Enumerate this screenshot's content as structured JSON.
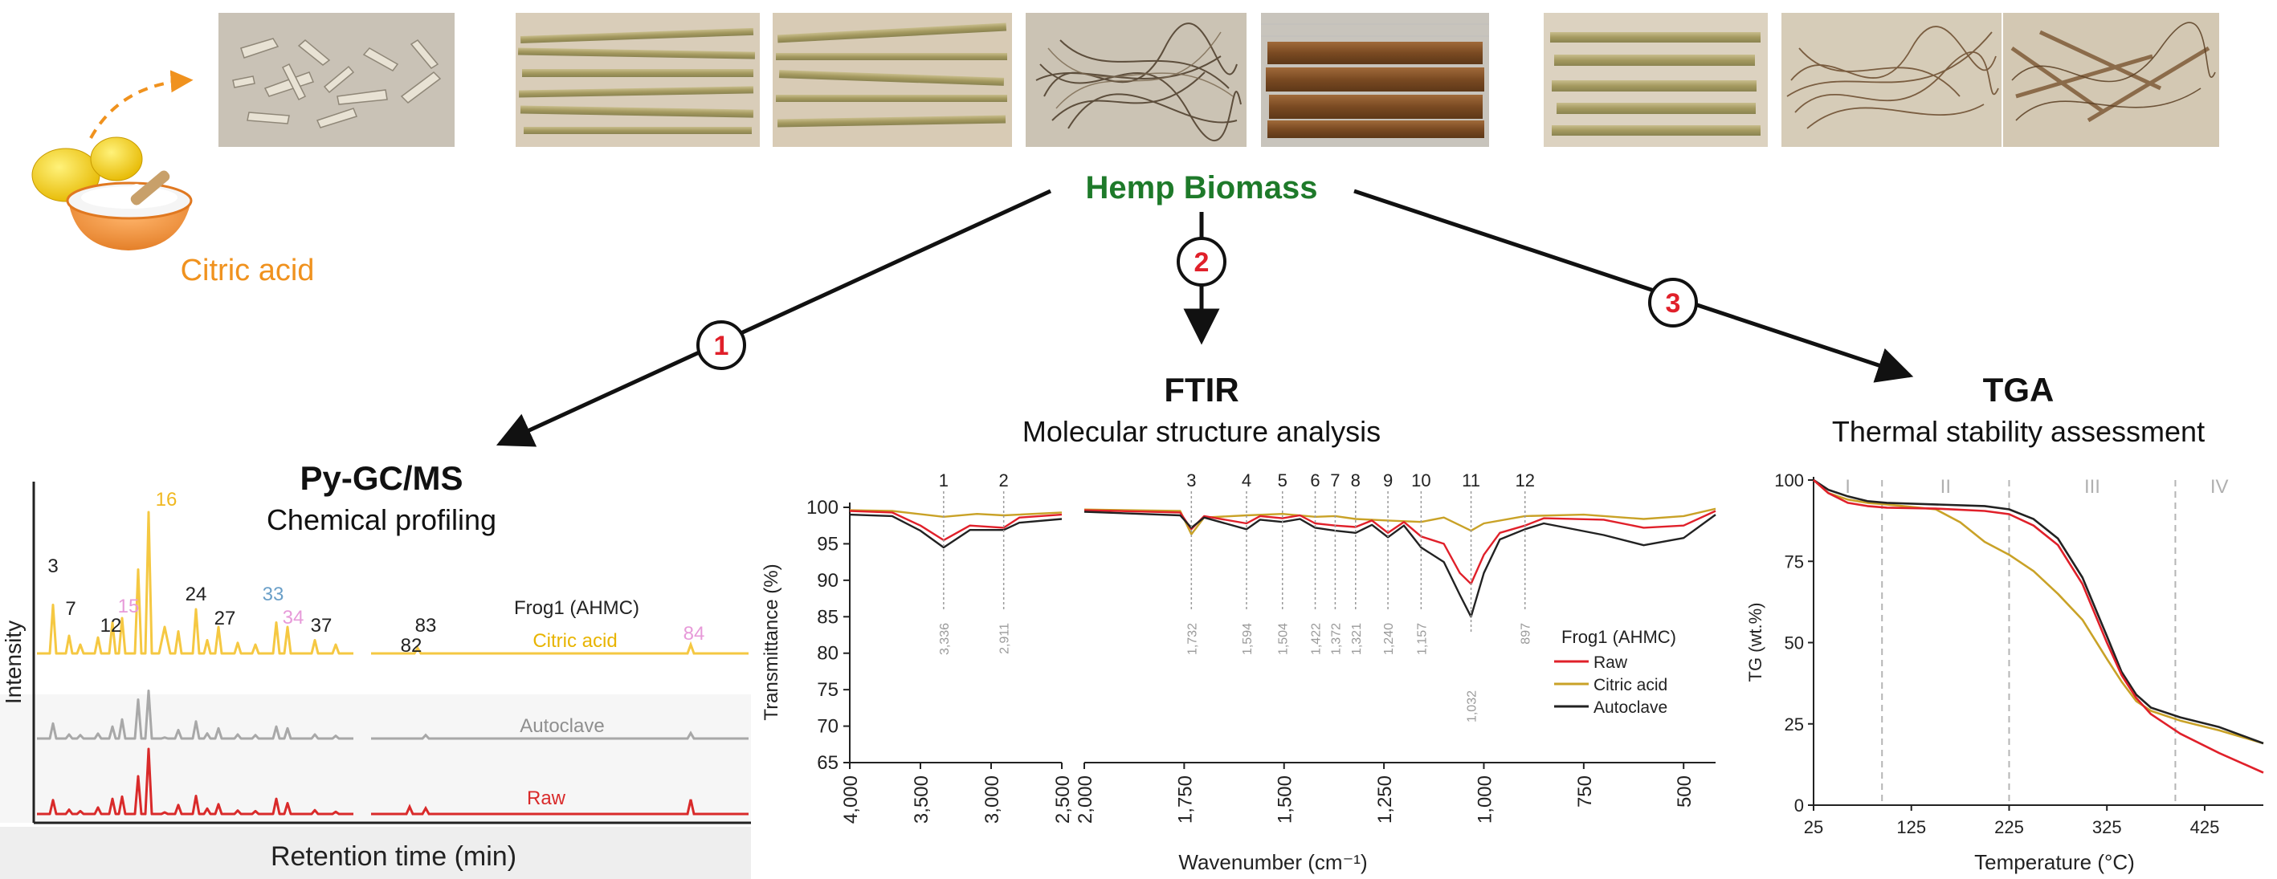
{
  "colors": {
    "title_green": "#1e7a2a",
    "citric_orange": "#f0921e",
    "circle_red": "#e0202a",
    "raw_red": "#e0202a",
    "citric_gold": "#c9a227",
    "autoclave_black": "#222222",
    "pygc_yellow": "#f5c842",
    "pygc_gray": "#a8a8a8",
    "pygc_red": "#d92a2a",
    "grid_dash": "#b5b5b5"
  },
  "icons": [
    "lemons-and-citric-acid-bowl-icon",
    "dashed-arrow-icon"
  ],
  "top": {
    "citric_label": "Citric acid",
    "hemp_title": "Hemp Biomass",
    "photo_names": [
      "hemp-chips",
      "hemp-stalks-1",
      "hemp-stalks-2",
      "hemp-fiber-tangle",
      "hemp-split-stalks",
      "hemp-stalks-3",
      "hemp-fiber-loose",
      "hemp-fiber-mixed"
    ]
  },
  "steps": [
    {
      "num": "1",
      "title": "Py-GC/MS",
      "subtitle": "Chemical profiling"
    },
    {
      "num": "2",
      "title": "FTIR",
      "subtitle": "Molecular structure analysis"
    },
    {
      "num": "3",
      "title": "TGA",
      "subtitle": "Thermal stability assessment"
    }
  ],
  "pygc": {
    "ylabel": "Intensity",
    "xlabel": "Retention time (min)",
    "legend_title": "Frog1 (AHMC)",
    "trace_labels": [
      "Citric acid",
      "Autoclave",
      "Raw"
    ],
    "peak_labels": [
      {
        "t": "3",
        "c": "dark"
      },
      {
        "t": "7",
        "c": "dark"
      },
      {
        "t": "12",
        "c": "dark"
      },
      {
        "t": "15",
        "c": "pink"
      },
      {
        "t": "16",
        "c": "yellow"
      },
      {
        "t": "24",
        "c": "dark"
      },
      {
        "t": "27",
        "c": "dark"
      },
      {
        "t": "33",
        "c": "blue"
      },
      {
        "t": "34",
        "c": "pink"
      },
      {
        "t": "37",
        "c": "dark"
      },
      {
        "t": "82",
        "c": "dark"
      },
      {
        "t": "83",
        "c": "dark"
      },
      {
        "t": "84",
        "c": "pink"
      }
    ]
  },
  "chart_data": [
    {
      "type": "line",
      "title": "FTIR",
      "subtitle": "Molecular structure analysis",
      "xlabel": "Wavenumber (cm⁻¹)",
      "ylabel": "Transmittance (%)",
      "legend_title": "Frog1 (AHMC)",
      "legend_position": "right",
      "ylim": [
        65,
        100
      ],
      "yticks": [
        "100",
        "95",
        "90",
        "85",
        "80",
        "75",
        "70",
        "65"
      ],
      "xticks_left": [
        "4,000",
        "3,500",
        "3,000",
        "2,500"
      ],
      "xticks_right": [
        "2,000",
        "1,750",
        "1,500",
        "1,250",
        "1,000",
        "750",
        "500"
      ],
      "band_numbers": [
        "1",
        "2",
        "3",
        "4",
        "5",
        "6",
        "7",
        "8",
        "9",
        "10",
        "11",
        "12"
      ],
      "band_labels": [
        "3,336",
        "2,911",
        "1,732",
        "1,594",
        "1,504",
        "1,422",
        "1,372",
        "1,321",
        "1,240",
        "1,157",
        "1,032",
        "897"
      ],
      "band_wavenumbers": [
        3336,
        2911,
        1732,
        1594,
        1504,
        1422,
        1372,
        1321,
        1240,
        1157,
        1032,
        897
      ],
      "series": [
        {
          "name": "Raw",
          "color": "#e0202a",
          "points": [
            [
              4000,
              99.5
            ],
            [
              3700,
              99.3
            ],
            [
              3500,
              97.5
            ],
            [
              3336,
              95.5
            ],
            [
              3150,
              97.5
            ],
            [
              2911,
              97.2
            ],
            [
              2800,
              98.6
            ],
            [
              2500,
              99.0
            ],
            [
              2000,
              99.6
            ],
            [
              1760,
              99.3
            ],
            [
              1732,
              97.0
            ],
            [
              1700,
              98.8
            ],
            [
              1594,
              97.8
            ],
            [
              1560,
              98.8
            ],
            [
              1504,
              98.5
            ],
            [
              1460,
              98.9
            ],
            [
              1422,
              97.8
            ],
            [
              1372,
              97.5
            ],
            [
              1321,
              97.3
            ],
            [
              1280,
              98.2
            ],
            [
              1240,
              96.5
            ],
            [
              1200,
              98.0
            ],
            [
              1157,
              96.0
            ],
            [
              1100,
              95.0
            ],
            [
              1060,
              91.0
            ],
            [
              1032,
              89.5
            ],
            [
              1000,
              93.5
            ],
            [
              960,
              96.5
            ],
            [
              897,
              97.5
            ],
            [
              850,
              98.5
            ],
            [
              700,
              98.3
            ],
            [
              600,
              97.2
            ],
            [
              500,
              97.5
            ],
            [
              420,
              99.5
            ]
          ]
        },
        {
          "name": "Citric acid",
          "color": "#c9a227",
          "points": [
            [
              4000,
              99.6
            ],
            [
              3700,
              99.5
            ],
            [
              3336,
              98.7
            ],
            [
              3100,
              99.1
            ],
            [
              2911,
              98.9
            ],
            [
              2500,
              99.3
            ],
            [
              2000,
              99.7
            ],
            [
              1760,
              99.5
            ],
            [
              1732,
              96.3
            ],
            [
              1700,
              98.6
            ],
            [
              1594,
              98.9
            ],
            [
              1504,
              99.1
            ],
            [
              1422,
              98.7
            ],
            [
              1372,
              98.8
            ],
            [
              1321,
              98.4
            ],
            [
              1240,
              98.2
            ],
            [
              1157,
              98.0
            ],
            [
              1100,
              98.6
            ],
            [
              1032,
              96.8
            ],
            [
              1000,
              97.8
            ],
            [
              897,
              98.8
            ],
            [
              750,
              99.0
            ],
            [
              600,
              98.4
            ],
            [
              500,
              98.8
            ],
            [
              420,
              99.8
            ]
          ]
        },
        {
          "name": "Autoclave",
          "color": "#222222",
          "points": [
            [
              4000,
              99.0
            ],
            [
              3700,
              98.8
            ],
            [
              3500,
              96.8
            ],
            [
              3336,
              94.5
            ],
            [
              3150,
              96.9
            ],
            [
              2911,
              96.9
            ],
            [
              2800,
              97.9
            ],
            [
              2500,
              98.4
            ],
            [
              2000,
              99.4
            ],
            [
              1760,
              98.9
            ],
            [
              1732,
              97.2
            ],
            [
              1700,
              98.6
            ],
            [
              1594,
              97.0
            ],
            [
              1560,
              98.3
            ],
            [
              1504,
              98.0
            ],
            [
              1460,
              98.4
            ],
            [
              1422,
              97.2
            ],
            [
              1372,
              96.8
            ],
            [
              1321,
              96.5
            ],
            [
              1280,
              97.6
            ],
            [
              1240,
              95.9
            ],
            [
              1200,
              97.5
            ],
            [
              1157,
              94.5
            ],
            [
              1100,
              92.5
            ],
            [
              1060,
              88.0
            ],
            [
              1032,
              85.0
            ],
            [
              1000,
              91.0
            ],
            [
              960,
              95.6
            ],
            [
              897,
              97.0
            ],
            [
              850,
              97.8
            ],
            [
              700,
              96.2
            ],
            [
              600,
              94.8
            ],
            [
              500,
              95.8
            ],
            [
              420,
              99.0
            ]
          ]
        }
      ]
    },
    {
      "type": "line",
      "title": "TGA",
      "subtitle": "Thermal stability assessment",
      "xlabel": "Temperature (°C)",
      "ylabel": "TG (wt.%)",
      "xlim": [
        25,
        485
      ],
      "ylim": [
        0,
        100
      ],
      "xticks": [
        "25",
        "125",
        "225",
        "325",
        "425"
      ],
      "yticks": [
        "100",
        "75",
        "50",
        "25",
        "0"
      ],
      "region_labels": [
        "I",
        "II",
        "III",
        "IV"
      ],
      "region_boundaries": [
        95,
        225,
        395
      ],
      "series": [
        {
          "name": "Raw",
          "color": "#e0202a",
          "points": [
            [
              25,
              100
            ],
            [
              40,
              96
            ],
            [
              60,
              93
            ],
            [
              80,
              92
            ],
            [
              100,
              91.5
            ],
            [
              150,
              91.2
            ],
            [
              200,
              90.5
            ],
            [
              225,
              89.5
            ],
            [
              250,
              86
            ],
            [
              275,
              80
            ],
            [
              300,
              68
            ],
            [
              325,
              50
            ],
            [
              340,
              40
            ],
            [
              355,
              33
            ],
            [
              370,
              28
            ],
            [
              400,
              22
            ],
            [
              440,
              16
            ],
            [
              485,
              10
            ]
          ]
        },
        {
          "name": "Citric acid",
          "color": "#c9a227",
          "points": [
            [
              25,
              100
            ],
            [
              40,
              96
            ],
            [
              60,
              94
            ],
            [
              80,
              93
            ],
            [
              100,
              92.5
            ],
            [
              150,
              91
            ],
            [
              175,
              87
            ],
            [
              200,
              81
            ],
            [
              225,
              77
            ],
            [
              250,
              72
            ],
            [
              275,
              65
            ],
            [
              300,
              57
            ],
            [
              325,
              45
            ],
            [
              340,
              38
            ],
            [
              355,
              32
            ],
            [
              370,
              29
            ],
            [
              400,
              26
            ],
            [
              440,
              23
            ],
            [
              485,
              19
            ]
          ]
        },
        {
          "name": "Autoclave",
          "color": "#222222",
          "points": [
            [
              25,
              100
            ],
            [
              40,
              97
            ],
            [
              60,
              95
            ],
            [
              80,
              93.5
            ],
            [
              100,
              93
            ],
            [
              150,
              92.5
            ],
            [
              200,
              92
            ],
            [
              225,
              91
            ],
            [
              250,
              88
            ],
            [
              275,
              82
            ],
            [
              300,
              70
            ],
            [
              325,
              52
            ],
            [
              340,
              41
            ],
            [
              355,
              34
            ],
            [
              370,
              30
            ],
            [
              400,
              27
            ],
            [
              440,
              24
            ],
            [
              485,
              19
            ]
          ]
        }
      ]
    }
  ]
}
